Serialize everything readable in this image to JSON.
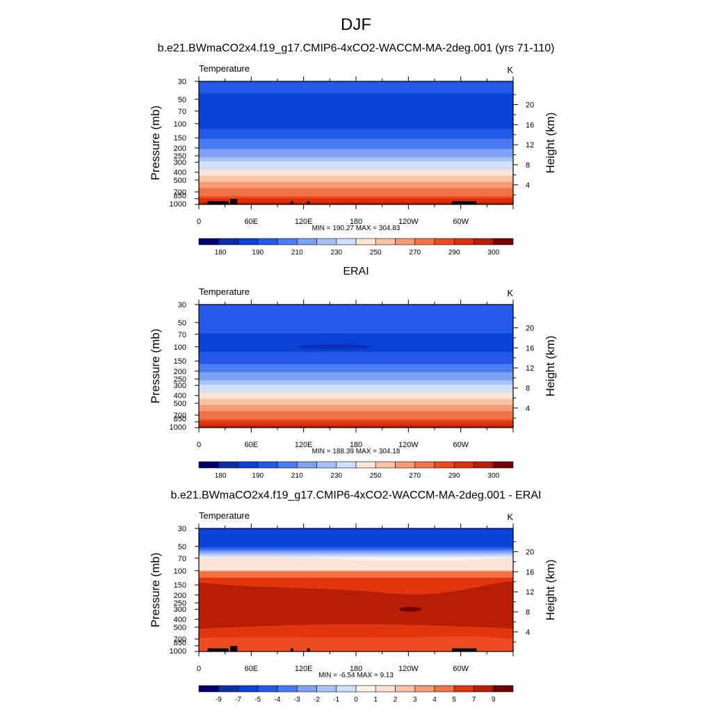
{
  "main_title": "DJF",
  "palette_main": [
    "#03006d",
    "#0e2ea8",
    "#0b41d6",
    "#2458e8",
    "#4a7bf0",
    "#7ea1f3",
    "#a9c3f7",
    "#cfe0fb",
    "#fbe4d6",
    "#f9c3a5",
    "#f59c76",
    "#f17448",
    "#ec4b22",
    "#de300c",
    "#b61e05",
    "#730000"
  ],
  "panels": [
    {
      "title": "b.e21.BWmaCO2x4.f19_g17.CMIP6-4xCO2-WACCM-MA-2deg.001 (yrs 71-110)",
      "var_label": "Temperature",
      "units": "K",
      "min_max": "MIN = 190.27  MAX = 304.83",
      "cb_labels": [
        "180",
        "190",
        "210",
        "230",
        "250",
        "270",
        "290",
        "300"
      ]
    },
    {
      "title": "ERAI",
      "var_label": "Temperature",
      "units": "K",
      "min_max": "MIN = 188.39  MAX = 304.18",
      "cb_labels": [
        "180",
        "190",
        "210",
        "230",
        "250",
        "270",
        "290",
        "300"
      ]
    },
    {
      "title": "b.e21.BWmaCO2x4.f19_g17.CMIP6-4xCO2-WACCM-MA-2deg.001 - ERAI",
      "var_label": "Temperature",
      "units": "K",
      "min_max": "MIN =  -6.54  MAX =   9.13",
      "cb_labels": [
        "-9",
        "-7",
        "-5",
        "-4",
        "-3",
        "-2",
        "-1",
        "0",
        "1",
        "2",
        "3",
        "4",
        "5",
        "7",
        "9"
      ]
    }
  ],
  "chart_data": [
    {
      "type": "heatmap",
      "title": "b.e21.BWmaCO2x4.f19_g17.CMIP6-4xCO2-WACCM-MA-2deg.001 (yrs 71-110)",
      "variable": "Temperature",
      "units": "K",
      "xlabel": "",
      "ylabel": "Pressure (mb)",
      "y2label": "Height (km)",
      "x_ticks": [
        "0",
        "60E",
        "120E",
        "180",
        "120W",
        "60W"
      ],
      "y_ticks": [
        "30",
        "50",
        "70",
        "100",
        "150",
        "200",
        "250",
        "300",
        "400",
        "500",
        "700",
        "850",
        "1000"
      ],
      "y2_ticks": [
        "20",
        "16",
        "12",
        "8",
        "4"
      ],
      "ylim": [
        1000,
        30
      ],
      "min": 190.27,
      "max": 304.83,
      "colorbar_levels": [
        180,
        190,
        210,
        230,
        250,
        270,
        290,
        300
      ],
      "profile": {
        "pressure_mb": [
          30,
          50,
          70,
          100,
          150,
          200,
          250,
          300,
          400,
          500,
          700,
          850,
          1000
        ],
        "temperature_K": [
          205,
          198,
          197,
          196,
          210,
          218,
          228,
          240,
          255,
          268,
          285,
          295,
          304
        ]
      }
    },
    {
      "type": "heatmap",
      "title": "ERAI",
      "variable": "Temperature",
      "units": "K",
      "xlabel": "",
      "ylabel": "Pressure (mb)",
      "y2label": "Height (km)",
      "x_ticks": [
        "0",
        "60E",
        "120E",
        "180",
        "120W",
        "60W"
      ],
      "y_ticks": [
        "30",
        "50",
        "70",
        "100",
        "150",
        "200",
        "250",
        "300",
        "400",
        "500",
        "700",
        "850",
        "1000"
      ],
      "y2_ticks": [
        "20",
        "16",
        "12",
        "8",
        "4"
      ],
      "ylim": [
        1000,
        30
      ],
      "min": 188.39,
      "max": 304.18,
      "colorbar_levels": [
        180,
        190,
        210,
        230,
        250,
        270,
        290,
        300
      ],
      "profile": {
        "pressure_mb": [
          30,
          50,
          70,
          100,
          150,
          200,
          250,
          300,
          400,
          500,
          700,
          850,
          1000
        ],
        "temperature_K": [
          210,
          204,
          200,
          195,
          208,
          218,
          228,
          240,
          255,
          268,
          285,
          295,
          304
        ]
      }
    },
    {
      "type": "heatmap",
      "title": "b.e21.BWmaCO2x4.f19_g17.CMIP6-4xCO2-WACCM-MA-2deg.001 - ERAI",
      "variable": "Temperature",
      "units": "K",
      "xlabel": "",
      "ylabel": "Pressure (mb)",
      "y2label": "Height (km)",
      "x_ticks": [
        "0",
        "60E",
        "120E",
        "180",
        "120W",
        "60W"
      ],
      "y_ticks": [
        "30",
        "50",
        "70",
        "100",
        "150",
        "200",
        "250",
        "300",
        "400",
        "500",
        "700",
        "850",
        "1000"
      ],
      "y2_ticks": [
        "20",
        "16",
        "12",
        "8",
        "4"
      ],
      "ylim": [
        1000,
        30
      ],
      "min": -6.54,
      "max": 9.13,
      "colorbar_levels": [
        -9,
        -7,
        -5,
        -4,
        -3,
        -2,
        -1,
        0,
        1,
        2,
        3,
        4,
        5,
        7,
        9
      ],
      "profile": {
        "pressure_mb": [
          30,
          50,
          70,
          100,
          150,
          200,
          250,
          300,
          400,
          500,
          700,
          850,
          1000
        ],
        "difference_K": [
          -6,
          -5,
          0,
          4,
          6,
          7,
          7,
          7,
          6,
          6,
          5,
          5,
          4
        ]
      }
    }
  ]
}
